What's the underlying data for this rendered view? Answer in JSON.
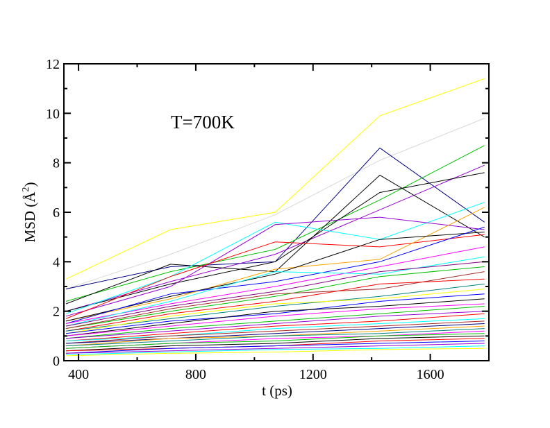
{
  "chart_data": {
    "type": "line",
    "annotation": "T=700K",
    "xlabel": "t (ps)",
    "ylabel_base": "MSD (",
    "ylabel_unit": "Å",
    "ylabel_exp": "2",
    "ylabel_close": ")",
    "xlim": [
      350,
      1800
    ],
    "ylim": [
      0,
      12
    ],
    "xticks": [
      400,
      800,
      1200,
      1600
    ],
    "yticks": [
      0,
      2,
      4,
      6,
      8,
      10,
      12
    ],
    "x": [
      357,
      714,
      1071,
      1428,
      1785
    ],
    "grid": false,
    "legend": "none",
    "series": [
      {
        "color": "#ffff00",
        "values": [
          3.3,
          5.3,
          6.0,
          9.9,
          11.4
        ]
      },
      {
        "color": "#d8d8d8",
        "values": [
          2.9,
          4.3,
          5.9,
          8.1,
          9.8
        ]
      },
      {
        "color": "#000080",
        "values": [
          2.9,
          3.8,
          4.0,
          8.6,
          5.6
        ]
      },
      {
        "color": "#00c000",
        "values": [
          2.4,
          3.6,
          4.5,
          6.5,
          8.7
        ]
      },
      {
        "color": "#9400d3",
        "values": [
          2.0,
          3.2,
          4.3,
          6.1,
          7.9
        ]
      },
      {
        "color": "#000000",
        "values": [
          2.3,
          3.9,
          3.6,
          7.5,
          5.0
        ]
      },
      {
        "color": "#000000",
        "values": [
          2.0,
          3.1,
          4.0,
          6.8,
          7.6
        ]
      },
      {
        "color": "#00ffff",
        "values": [
          1.9,
          3.4,
          5.6,
          4.9,
          6.4
        ]
      },
      {
        "color": "#9400d3",
        "values": [
          1.8,
          3.0,
          5.5,
          5.8,
          5.3
        ]
      },
      {
        "color": "#ff0000",
        "values": [
          1.7,
          3.4,
          4.8,
          4.6,
          5.1
        ]
      },
      {
        "color": "#ffa500",
        "values": [
          1.6,
          2.5,
          3.7,
          4.1,
          6.2
        ]
      },
      {
        "color": "#000000",
        "values": [
          1.6,
          2.6,
          3.5,
          4.9,
          5.2
        ]
      },
      {
        "color": "#0000ff",
        "values": [
          1.5,
          2.7,
          3.2,
          4.0,
          5.4
        ]
      },
      {
        "color": "#ff00ff",
        "values": [
          1.5,
          2.3,
          3.0,
          3.8,
          4.6
        ]
      },
      {
        "color": "#00ffff",
        "values": [
          1.4,
          2.4,
          3.6,
          3.5,
          4.2
        ]
      },
      {
        "color": "#800080",
        "values": [
          1.4,
          2.2,
          2.8,
          3.6,
          4.0
        ]
      },
      {
        "color": "#00c000",
        "values": [
          1.3,
          2.0,
          2.6,
          3.4,
          3.8
        ]
      },
      {
        "color": "#a52a2a",
        "values": [
          1.3,
          2.1,
          2.7,
          2.9,
          3.6
        ]
      },
      {
        "color": "#ff0000",
        "values": [
          1.2,
          1.9,
          2.4,
          3.1,
          3.3
        ]
      },
      {
        "color": "#008080",
        "values": [
          1.2,
          1.7,
          2.2,
          2.6,
          3.1
        ]
      },
      {
        "color": "#ffff00",
        "values": [
          1.1,
          1.8,
          2.3,
          2.5,
          2.9
        ]
      },
      {
        "color": "#0000ff",
        "values": [
          1.1,
          1.6,
          1.9,
          2.4,
          2.7
        ]
      },
      {
        "color": "#000000",
        "values": [
          1.0,
          1.5,
          2.0,
          2.2,
          2.5
        ]
      },
      {
        "color": "#ff00ff",
        "values": [
          1.0,
          1.4,
          1.8,
          2.1,
          2.3
        ]
      },
      {
        "color": "#00c000",
        "values": [
          0.9,
          1.3,
          1.6,
          1.9,
          2.2
        ]
      },
      {
        "color": "#9400d3",
        "values": [
          0.9,
          1.2,
          1.5,
          1.8,
          2.0
        ]
      },
      {
        "color": "#ff0000",
        "values": [
          0.8,
          1.1,
          1.4,
          1.6,
          1.9
        ]
      },
      {
        "color": "#00ffff",
        "values": [
          0.8,
          1.0,
          1.3,
          1.5,
          1.7
        ]
      },
      {
        "color": "#a52a2a",
        "values": [
          0.7,
          1.0,
          1.2,
          1.4,
          1.6
        ]
      },
      {
        "color": "#000080",
        "values": [
          0.7,
          0.9,
          1.1,
          1.3,
          1.5
        ]
      },
      {
        "color": "#ffa500",
        "values": [
          0.6,
          0.9,
          1.0,
          1.2,
          1.4
        ]
      },
      {
        "color": "#008080",
        "values": [
          0.6,
          0.8,
          1.0,
          1.1,
          1.3
        ]
      },
      {
        "color": "#ff00ff",
        "values": [
          0.5,
          0.7,
          0.9,
          1.0,
          1.2
        ]
      },
      {
        "color": "#00c000",
        "values": [
          0.5,
          0.7,
          0.8,
          1.0,
          1.1
        ]
      },
      {
        "color": "#000000",
        "values": [
          0.4,
          0.6,
          0.7,
          0.9,
          1.0
        ]
      },
      {
        "color": "#ff0000",
        "values": [
          0.4,
          0.5,
          0.6,
          0.8,
          0.9
        ]
      },
      {
        "color": "#0000ff",
        "values": [
          0.3,
          0.5,
          0.6,
          0.7,
          0.8
        ]
      },
      {
        "color": "#9400d3",
        "values": [
          0.3,
          0.4,
          0.5,
          0.6,
          0.7
        ]
      },
      {
        "color": "#00ffff",
        "values": [
          0.25,
          0.35,
          0.45,
          0.5,
          0.6
        ]
      },
      {
        "color": "#ffff00",
        "values": [
          0.2,
          0.3,
          0.35,
          0.45,
          0.5
        ]
      }
    ]
  }
}
